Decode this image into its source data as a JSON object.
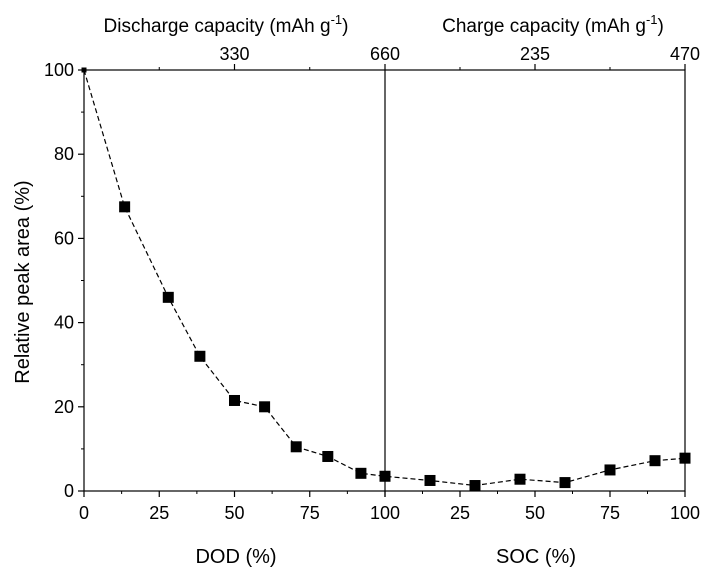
{
  "chart_data": {
    "type": "scatter",
    "style": {
      "line": "dashed",
      "marker": "square",
      "color": "#000000",
      "grid": false,
      "legend": "none"
    },
    "ylabel": "Relative peak area (%)",
    "ylim": [
      0,
      100
    ],
    "yticks": [
      "0",
      "20",
      "40",
      "60",
      "80",
      "100"
    ],
    "panels": [
      {
        "id": "discharge",
        "xlabel": "DOD (%)",
        "xlim": [
          0,
          100
        ],
        "xticks": [
          "0",
          "25",
          "50",
          "75",
          "100"
        ],
        "top_axis": {
          "label_text": "Discharge capacity (mAh g",
          "label_sup": "-1",
          "label_close": ")",
          "ticks": [
            {
              "dod": 50,
              "label": "330"
            },
            {
              "dod": 100,
              "label": "660"
            }
          ]
        },
        "x": [
          0,
          13.5,
          28,
          38.5,
          50,
          60,
          70.5,
          81,
          92,
          100
        ],
        "y": [
          100,
          67.5,
          46,
          32,
          21.5,
          20,
          10.5,
          8.2,
          4.2,
          3.5
        ]
      },
      {
        "id": "charge",
        "xlabel": "SOC (%)",
        "xlim": [
          0,
          100
        ],
        "xticks": [
          "25",
          "50",
          "75",
          "100"
        ],
        "top_axis": {
          "label_text": "Charge capacity (mAh g",
          "label_sup": "-1",
          "label_close": ")",
          "ticks": [
            {
              "soc": 50,
              "label": "235"
            },
            {
              "soc": 100,
              "label": "470"
            }
          ]
        },
        "x": [
          15,
          30,
          45,
          60,
          75,
          90,
          100
        ],
        "y": [
          2.5,
          1.3,
          2.8,
          2.0,
          5.0,
          7.2,
          7.8
        ]
      }
    ]
  }
}
